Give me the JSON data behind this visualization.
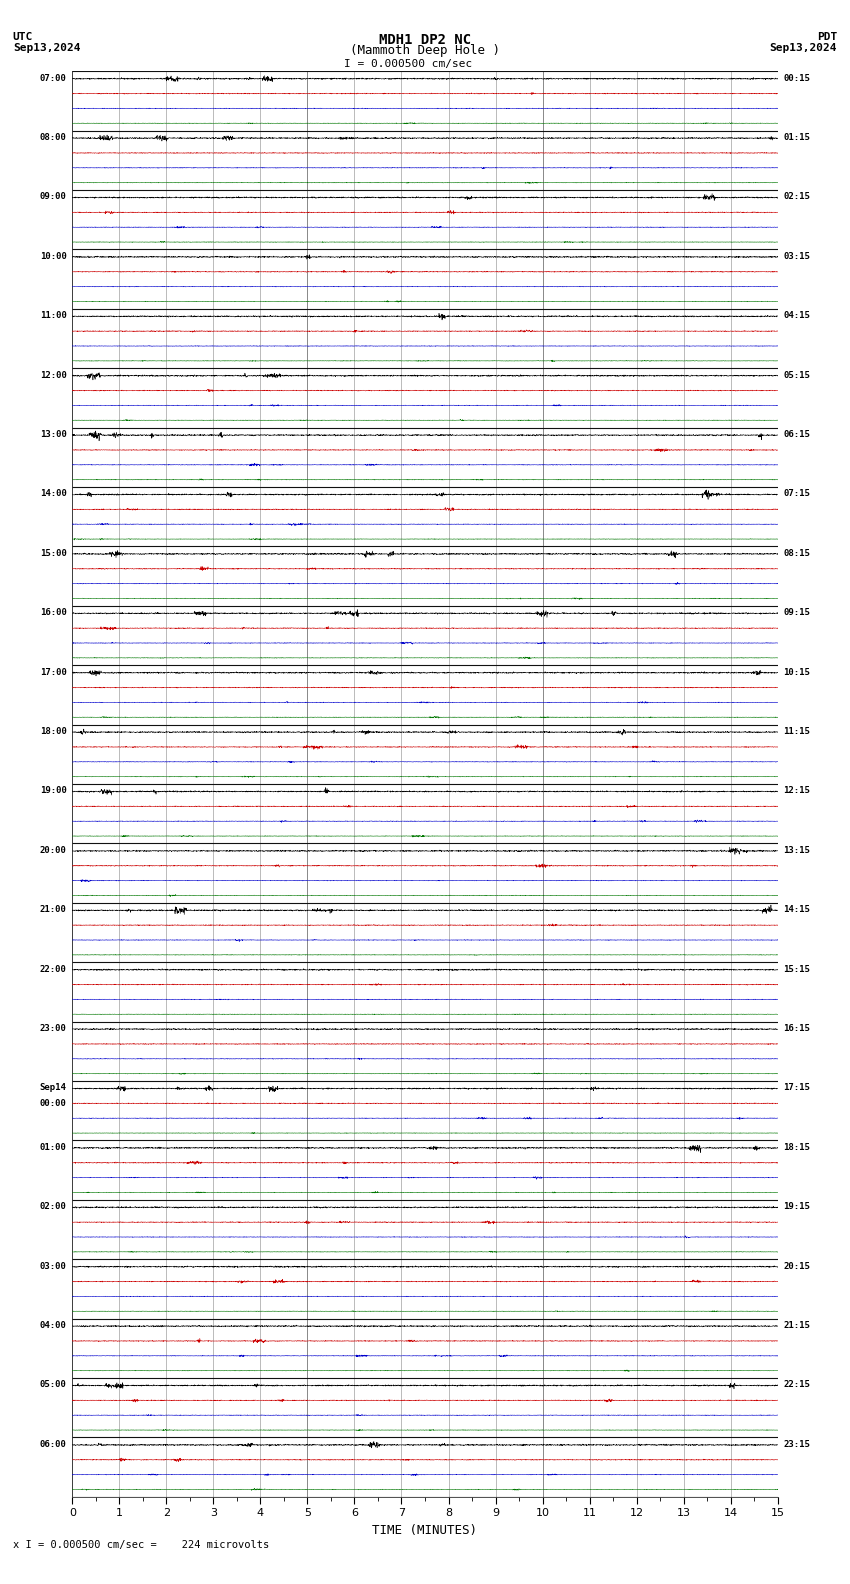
{
  "title_line1": "MDH1 DP2 NC",
  "title_line2": "(Mammoth Deep Hole )",
  "scale_label": "= 0.000500 cm/sec",
  "utc_label": "UTC",
  "utc_date": "Sep13,2024",
  "pdt_label": "PDT",
  "pdt_date": "Sep13,2024",
  "bottom_label": "TIME (MINUTES)",
  "bottom_note": "= 0.000500 cm/sec =    224 microvolts",
  "x_ticks": [
    0,
    1,
    2,
    3,
    4,
    5,
    6,
    7,
    8,
    9,
    10,
    11,
    12,
    13,
    14,
    15
  ],
  "xlim": [
    0,
    15
  ],
  "background_color": "#ffffff",
  "grid_color": "#888888",
  "trace_colors": [
    "#000000",
    "#cc0000",
    "#0000cc",
    "#007700"
  ],
  "num_hour_blocks": 24,
  "traces_per_block": 4,
  "utc_times": [
    "07:00",
    "08:00",
    "09:00",
    "10:00",
    "11:00",
    "12:00",
    "13:00",
    "14:00",
    "15:00",
    "16:00",
    "17:00",
    "18:00",
    "19:00",
    "20:00",
    "21:00",
    "22:00",
    "23:00",
    "Sep14\n00:00",
    "01:00",
    "02:00",
    "03:00",
    "04:00",
    "05:00",
    "06:00"
  ],
  "pdt_times": [
    "00:15",
    "01:15",
    "02:15",
    "03:15",
    "04:15",
    "05:15",
    "06:15",
    "07:15",
    "08:15",
    "09:15",
    "10:15",
    "11:15",
    "12:15",
    "13:15",
    "14:15",
    "15:15",
    "16:15",
    "17:15",
    "18:15",
    "19:15",
    "20:15",
    "21:15",
    "22:15",
    "23:15"
  ],
  "fig_width": 8.5,
  "fig_height": 15.84,
  "dpi": 100,
  "noise_seed": 42,
  "trace_amplitudes": [
    0.02,
    0.012,
    0.008,
    0.007
  ],
  "spike_amplitude_mult": [
    4.0,
    3.5,
    3.0,
    2.5
  ],
  "n_samples": 3000
}
